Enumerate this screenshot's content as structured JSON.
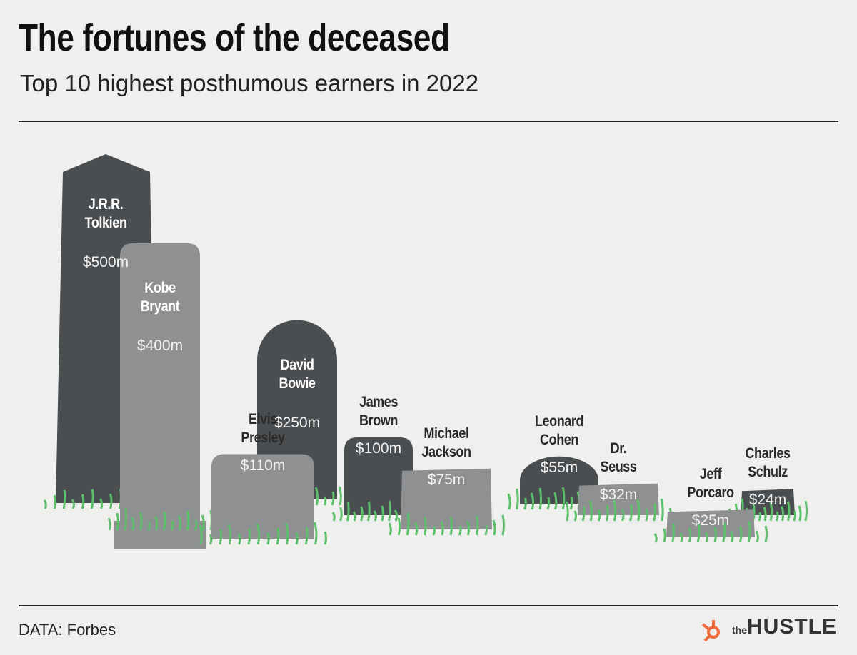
{
  "chart_data": {
    "type": "tombstone",
    "title": "The fortunes of the deceased",
    "subtitle": "Top 10 highest posthumous earners in 2022",
    "categories": [
      "J.R.R. Tolkien",
      "Kobe Bryant",
      "David Bowie",
      "Elvis Presley",
      "James Brown",
      "Michael Jackson",
      "Leonard Cohen",
      "Dr. Seuss",
      "Jeff Porcaro",
      "Charles Schulz"
    ],
    "values": [
      500,
      400,
      250,
      110,
      100,
      75,
      55,
      32,
      25,
      24
    ],
    "value_labels": [
      "$500m",
      "$400m",
      "$250m",
      "$110m",
      "$100m",
      "$75m",
      "$55m",
      "$32m",
      "$25m",
      "$24m"
    ],
    "colors": [
      "#4b4e51",
      "#8e9092",
      "#4b4e51",
      "#8e9092",
      "#4b4e51",
      "#8e9092",
      "#4b4e51",
      "#8e9092",
      "#8e9092",
      "#4b4e51"
    ],
    "source": "DATA: Forbes",
    "logo": {
      "prefix": "the",
      "name": "HUSTLE"
    }
  }
}
